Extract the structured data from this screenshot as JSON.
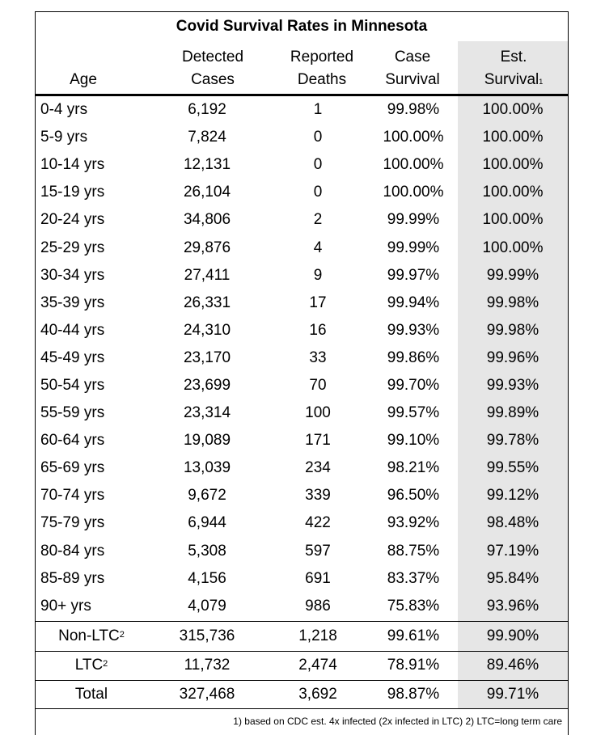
{
  "title": "Covid Survival Rates in Minnesota",
  "headers": {
    "age": "Age",
    "detected_1": "Detected",
    "detected_2": "Cases",
    "deaths_1": "Reported",
    "deaths_2": "Deaths",
    "case_1": "Case",
    "case_2": "Survival",
    "est_1": "Est.",
    "est_2": "Survival",
    "est_sup": "1"
  },
  "rows": [
    {
      "age": "0-4 yrs",
      "cases": "6,192",
      "deaths": "1",
      "case_survival": "99.98%",
      "est_survival": "100.00%"
    },
    {
      "age": "5-9 yrs",
      "cases": "7,824",
      "deaths": "0",
      "case_survival": "100.00%",
      "est_survival": "100.00%"
    },
    {
      "age": "10-14 yrs",
      "cases": "12,131",
      "deaths": "0",
      "case_survival": "100.00%",
      "est_survival": "100.00%"
    },
    {
      "age": "15-19 yrs",
      "cases": "26,104",
      "deaths": "0",
      "case_survival": "100.00%",
      "est_survival": "100.00%"
    },
    {
      "age": "20-24 yrs",
      "cases": "34,806",
      "deaths": "2",
      "case_survival": "99.99%",
      "est_survival": "100.00%"
    },
    {
      "age": "25-29 yrs",
      "cases": "29,876",
      "deaths": "4",
      "case_survival": "99.99%",
      "est_survival": "100.00%"
    },
    {
      "age": "30-34 yrs",
      "cases": "27,411",
      "deaths": "9",
      "case_survival": "99.97%",
      "est_survival": "99.99%"
    },
    {
      "age": "35-39 yrs",
      "cases": "26,331",
      "deaths": "17",
      "case_survival": "99.94%",
      "est_survival": "99.98%"
    },
    {
      "age": "40-44 yrs",
      "cases": "24,310",
      "deaths": "16",
      "case_survival": "99.93%",
      "est_survival": "99.98%"
    },
    {
      "age": "45-49 yrs",
      "cases": "23,170",
      "deaths": "33",
      "case_survival": "99.86%",
      "est_survival": "99.96%"
    },
    {
      "age": "50-54 yrs",
      "cases": "23,699",
      "deaths": "70",
      "case_survival": "99.70%",
      "est_survival": "99.93%"
    },
    {
      "age": "55-59 yrs",
      "cases": "23,314",
      "deaths": "100",
      "case_survival": "99.57%",
      "est_survival": "99.89%"
    },
    {
      "age": "60-64 yrs",
      "cases": "19,089",
      "deaths": "171",
      "case_survival": "99.10%",
      "est_survival": "99.78%"
    },
    {
      "age": "65-69 yrs",
      "cases": "13,039",
      "deaths": "234",
      "case_survival": "98.21%",
      "est_survival": "99.55%"
    },
    {
      "age": "70-74 yrs",
      "cases": "9,672",
      "deaths": "339",
      "case_survival": "96.50%",
      "est_survival": "99.12%"
    },
    {
      "age": "75-79 yrs",
      "cases": "6,944",
      "deaths": "422",
      "case_survival": "93.92%",
      "est_survival": "98.48%"
    },
    {
      "age": "80-84 yrs",
      "cases": "5,308",
      "deaths": "597",
      "case_survival": "88.75%",
      "est_survival": "97.19%"
    },
    {
      "age": "85-89 yrs",
      "cases": "4,156",
      "deaths": "691",
      "case_survival": "83.37%",
      "est_survival": "95.84%"
    },
    {
      "age": "90+ yrs",
      "cases": "4,079",
      "deaths": "986",
      "case_survival": "75.83%",
      "est_survival": "93.96%"
    }
  ],
  "summary": [
    {
      "label": "Non-LTC",
      "sup": "2",
      "cases": "315,736",
      "deaths": "1,218",
      "case_survival": "99.61%",
      "est_survival": "99.90%"
    },
    {
      "label": "LTC",
      "sup": "2",
      "cases": "11,732",
      "deaths": "2,474",
      "case_survival": "78.91%",
      "est_survival": "89.46%"
    },
    {
      "label": "Total",
      "sup": "",
      "cases": "327,468",
      "deaths": "3,692",
      "case_survival": "98.87%",
      "est_survival": "99.71%"
    }
  ],
  "footnote": "1) based on CDC est. 4x infected (2x infected in LTC)   2) LTC=long term care"
}
